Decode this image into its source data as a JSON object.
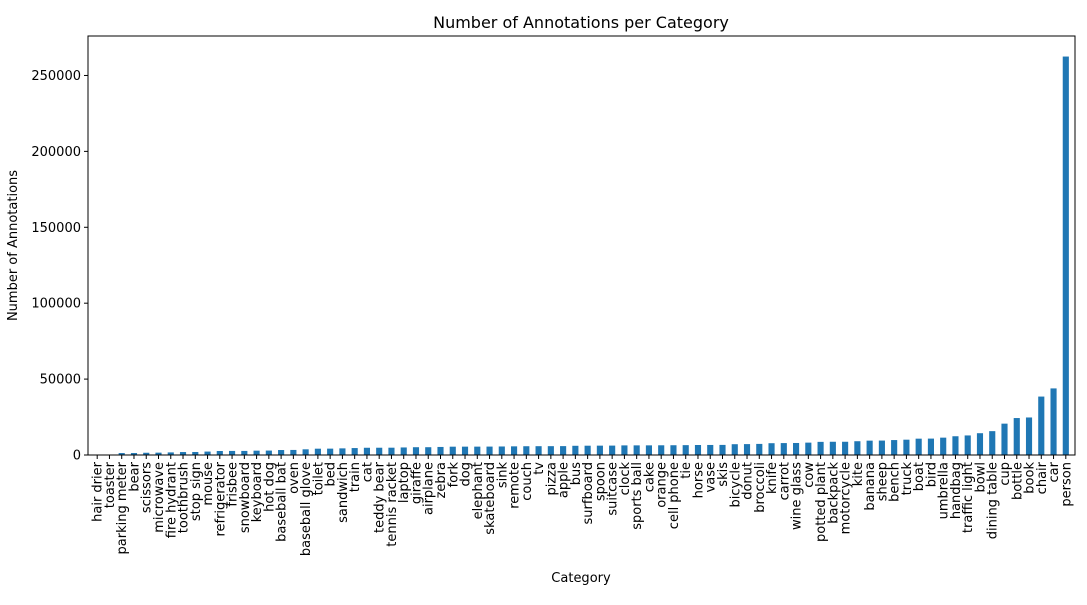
{
  "chart_data": {
    "type": "bar",
    "title": "Number of Annotations per Category",
    "xlabel": "Category",
    "ylabel": "Number of Annotations",
    "ylim": [
      0,
      276000
    ],
    "yticks": [
      0,
      50000,
      100000,
      150000,
      200000,
      250000
    ],
    "ytick_labels": [
      "0",
      "50000",
      "100000",
      "150000",
      "200000",
      "250000"
    ],
    "grid": false,
    "bar_color": "#1f77b4",
    "categories": [
      "hair drier",
      "toaster",
      "parking meter",
      "bear",
      "scissors",
      "microwave",
      "fire hydrant",
      "toothbrush",
      "stop sign",
      "mouse",
      "refrigerator",
      "frisbee",
      "snowboard",
      "keyboard",
      "hot dog",
      "baseball bat",
      "oven",
      "baseball glove",
      "toilet",
      "bed",
      "sandwich",
      "train",
      "cat",
      "teddy bear",
      "tennis racket",
      "laptop",
      "giraffe",
      "airplane",
      "zebra",
      "fork",
      "dog",
      "elephant",
      "skateboard",
      "sink",
      "remote",
      "couch",
      "tv",
      "pizza",
      "apple",
      "bus",
      "surfboard",
      "spoon",
      "suitcase",
      "clock",
      "sports ball",
      "cake",
      "orange",
      "cell phone",
      "tie",
      "horse",
      "vase",
      "skis",
      "bicycle",
      "donut",
      "broccoli",
      "knife",
      "carrot",
      "wine glass",
      "cow",
      "potted plant",
      "backpack",
      "motorcycle",
      "kite",
      "banana",
      "sheep",
      "bench",
      "truck",
      "boat",
      "bird",
      "umbrella",
      "handbag",
      "traffic light",
      "bowl",
      "dining table",
      "cup",
      "bottle",
      "book",
      "chair",
      "car",
      "person"
    ],
    "values": [
      198,
      225,
      1285,
      1294,
      1481,
      1547,
      1711,
      1945,
      1983,
      2262,
      2634,
      2682,
      2685,
      2855,
      2918,
      3276,
      3334,
      3747,
      4157,
      4192,
      4373,
      4571,
      4768,
      4793,
      4812,
      4970,
      5131,
      5135,
      5303,
      5479,
      5508,
      5513,
      5543,
      5610,
      5703,
      5779,
      5805,
      5821,
      5851,
      6069,
      6126,
      6165,
      6192,
      6334,
      6347,
      6353,
      6399,
      6434,
      6496,
      6587,
      6613,
      6646,
      7113,
      7179,
      7308,
      7770,
      7852,
      7913,
      8147,
      8652,
      8720,
      8725,
      9076,
      9458,
      9509,
      9838,
      10088,
      10759,
      10806,
      11431,
      12354,
      12884,
      14358,
      15714,
      20650,
      24342,
      24715,
      38491,
      43867,
      262465
    ]
  }
}
